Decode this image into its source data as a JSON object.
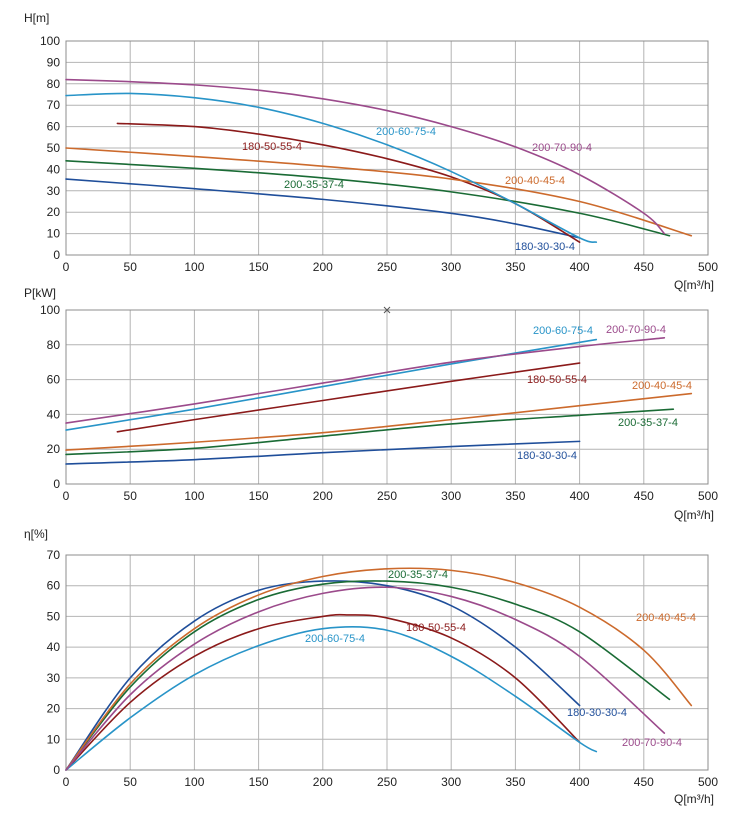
{
  "chart_data": [
    {
      "type": "line",
      "ylabel": "H[m]",
      "xlabel": "Q[m³/h]",
      "xlim": [
        0,
        500
      ],
      "ylim": [
        0,
        100
      ],
      "xticks": [
        0,
        50,
        100,
        150,
        200,
        250,
        300,
        350,
        400,
        450,
        500
      ],
      "yticks": [
        0,
        10,
        20,
        30,
        40,
        50,
        60,
        70,
        80,
        90,
        100
      ],
      "grid": true,
      "series": [
        {
          "name": "180-30-30-4",
          "color": "#1f4e9a",
          "x": [
            0,
            100,
            200,
            300,
            350,
            400
          ],
          "y": [
            35.5,
            31,
            26,
            19.5,
            14.5,
            8
          ]
        },
        {
          "name": "180-50-55-4",
          "color": "#8b1a1a",
          "x": [
            40,
            100,
            150,
            200,
            250,
            300,
            350,
            400
          ],
          "y": [
            61.5,
            60,
            56.5,
            51.5,
            45,
            36.5,
            24,
            6
          ]
        },
        {
          "name": "200-35-37-4",
          "color": "#1a6b35",
          "x": [
            0,
            100,
            200,
            300,
            400,
            470
          ],
          "y": [
            44,
            40.5,
            36,
            29.5,
            19.5,
            9
          ]
        },
        {
          "name": "200-40-45-4",
          "color": "#cc6a2c",
          "x": [
            0,
            100,
            200,
            300,
            400,
            487
          ],
          "y": [
            50,
            46,
            41.5,
            35.5,
            25,
            9
          ]
        },
        {
          "name": "200-60-75-4",
          "color": "#2894c8",
          "x": [
            0,
            50,
            100,
            150,
            200,
            250,
            300,
            350,
            400,
            413
          ],
          "y": [
            74.5,
            75.5,
            73.5,
            69,
            61.5,
            51.5,
            39,
            24,
            8,
            6
          ]
        },
        {
          "name": "200-70-90-4",
          "color": "#9b4a8b",
          "x": [
            0,
            50,
            100,
            150,
            200,
            250,
            300,
            350,
            400,
            450,
            466
          ],
          "y": [
            82,
            81,
            79.5,
            77,
            73,
            67.5,
            60,
            50.5,
            37.5,
            19.5,
            10
          ]
        }
      ]
    },
    {
      "type": "line",
      "ylabel": "P[kW]",
      "xlabel": "Q[m³/h]",
      "xlim": [
        0,
        500
      ],
      "ylim": [
        0,
        100
      ],
      "xticks": [
        0,
        50,
        100,
        150,
        200,
        250,
        300,
        350,
        400,
        450,
        500
      ],
      "yticks": [
        0,
        20,
        40,
        60,
        80,
        100
      ],
      "grid": true,
      "series": [
        {
          "name": "180-30-30-4",
          "color": "#1f4e9a",
          "x": [
            0,
            100,
            200,
            300,
            400
          ],
          "y": [
            11.5,
            14,
            18,
            21.5,
            24.5
          ]
        },
        {
          "name": "180-50-55-4",
          "color": "#8b1a1a",
          "x": [
            40,
            100,
            200,
            300,
            400
          ],
          "y": [
            30,
            37,
            48,
            59,
            69.5
          ]
        },
        {
          "name": "200-35-37-4",
          "color": "#1a6b35",
          "x": [
            0,
            100,
            200,
            300,
            400,
            473
          ],
          "y": [
            17,
            20.5,
            27.5,
            34.5,
            39.5,
            43
          ]
        },
        {
          "name": "200-40-45-4",
          "color": "#cc6a2c",
          "x": [
            0,
            100,
            200,
            300,
            400,
            487
          ],
          "y": [
            19.5,
            24,
            29.5,
            37,
            45,
            52
          ]
        },
        {
          "name": "200-60-75-4",
          "color": "#2894c8",
          "x": [
            0,
            100,
            200,
            300,
            413
          ],
          "y": [
            31,
            43,
            56,
            69,
            83
          ]
        },
        {
          "name": "200-70-90-4",
          "color": "#9b4a8b",
          "x": [
            0,
            100,
            200,
            300,
            400,
            466
          ],
          "y": [
            35,
            46,
            58,
            70,
            79,
            84
          ]
        }
      ],
      "annotation_xs": [
        {
          "x": 250,
          "y": 100
        }
      ]
    },
    {
      "type": "line",
      "ylabel": "η[%]",
      "xlabel": "Q[m³/h]",
      "xlim": [
        0,
        500
      ],
      "ylim": [
        0,
        70
      ],
      "xticks": [
        0,
        50,
        100,
        150,
        200,
        250,
        300,
        350,
        400,
        450,
        500
      ],
      "yticks": [
        0,
        10,
        20,
        30,
        40,
        50,
        60,
        70
      ],
      "grid": true,
      "series": [
        {
          "name": "180-30-30-4",
          "color": "#1f4e9a",
          "x": [
            0,
            50,
            100,
            150,
            200,
            250,
            300,
            350,
            400
          ],
          "y": [
            0,
            30,
            48.5,
            58.5,
            61.5,
            60,
            53.5,
            40,
            21
          ]
        },
        {
          "name": "180-50-55-4",
          "color": "#8b1a1a",
          "x": [
            0,
            50,
            100,
            150,
            200,
            220,
            250,
            300,
            350,
            400
          ],
          "y": [
            0,
            22,
            37,
            46,
            50,
            50.5,
            49.5,
            43,
            30,
            9
          ]
        },
        {
          "name": "200-35-37-4",
          "color": "#1a6b35",
          "x": [
            0,
            50,
            100,
            150,
            200,
            250,
            300,
            350,
            400,
            470
          ],
          "y": [
            0,
            27,
            45,
            55.5,
            60.5,
            61.5,
            59.5,
            54,
            45,
            23
          ]
        },
        {
          "name": "200-40-45-4",
          "color": "#cc6a2c",
          "x": [
            0,
            50,
            100,
            150,
            200,
            250,
            300,
            350,
            400,
            450,
            487
          ],
          "y": [
            0,
            28,
            46,
            57,
            63,
            65.5,
            65,
            61,
            53,
            39,
            21
          ]
        },
        {
          "name": "200-60-75-4",
          "color": "#2894c8",
          "x": [
            0,
            50,
            100,
            150,
            200,
            250,
            300,
            350,
            400,
            413
          ],
          "y": [
            0,
            17,
            31,
            40.5,
            46,
            45.5,
            37,
            24,
            9,
            6
          ]
        },
        {
          "name": "200-70-90-4",
          "color": "#9b4a8b",
          "x": [
            0,
            50,
            100,
            150,
            200,
            250,
            300,
            350,
            400,
            466
          ],
          "y": [
            0,
            24.5,
            41,
            51.5,
            57.5,
            59.5,
            56.5,
            49,
            37,
            12
          ]
        }
      ]
    }
  ]
}
